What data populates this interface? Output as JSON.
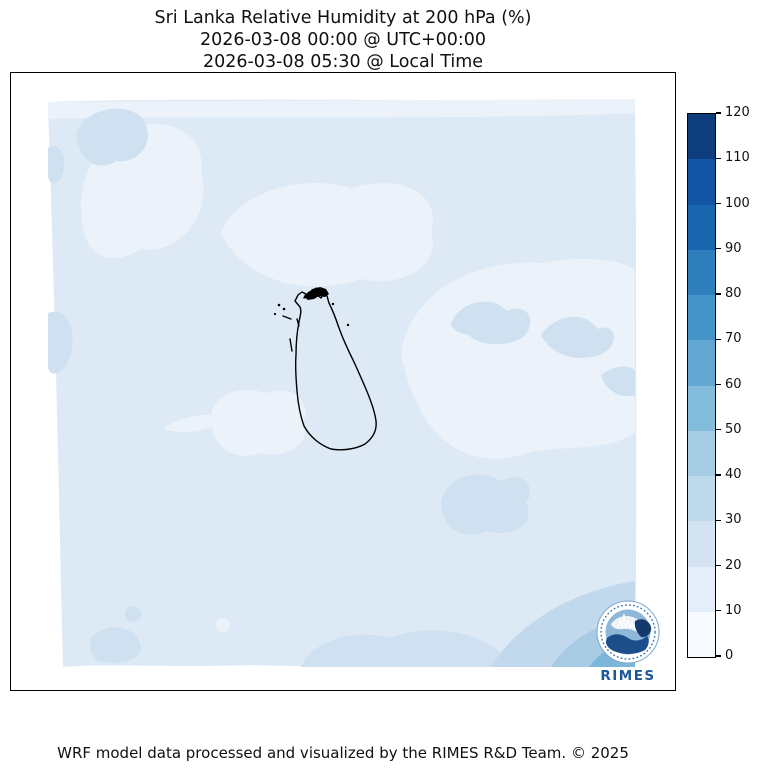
{
  "title": {
    "line1": "Sri Lanka Relative Humidity at 200 hPa (%)",
    "line2": "2026-03-08 00:00 @ UTC+00:00",
    "line3": "2026-03-08 05:30 @ Local Time"
  },
  "footer": {
    "credit": "WRF model data processed and visualized by the RIMES R&D Team. © 2025"
  },
  "colorbar": {
    "min": 0,
    "max": 120,
    "tick_step": 10,
    "ticks": [
      120,
      110,
      100,
      90,
      80,
      70,
      60,
      50,
      40,
      30,
      20,
      10,
      0
    ],
    "segments_top_to_bottom": [
      "#0d3d7c",
      "#1155a4",
      "#1a66ae",
      "#2f7fbc",
      "#4594c7",
      "#62a8d2",
      "#84bcdb",
      "#a5cde4",
      "#bed8ec",
      "#d3e3f1",
      "#e4eef9",
      "#f7fbff"
    ]
  },
  "map": {
    "region": "Sri Lanka",
    "coastline_color": "#000000",
    "colors": {
      "base": "#dde9f5",
      "light": "#ebf2fa",
      "shade20": "#cfe0f0",
      "band30": "#c2d8ec",
      "band40": "#a6cbe3",
      "band50": "#7cb7d9"
    }
  },
  "logo": {
    "label": "RIMES",
    "text_color": "#1d5796",
    "navy": "#1c4e8c",
    "dark": "#14396b",
    "mid": "#8fb8d8",
    "ring": "#3c78b4"
  },
  "chart_data": {
    "type": "heatmap",
    "title": "Sri Lanka Relative Humidity at 200 hPa (%)",
    "units": "%",
    "colorbar_range": [
      0,
      120
    ],
    "colorbar_ticks": [
      0,
      10,
      20,
      30,
      40,
      50,
      60,
      70,
      80,
      90,
      100,
      110,
      120
    ],
    "colormap": "Blues",
    "visible_field_range": [
      0,
      60
    ],
    "notes_visible": "Mostly 0-30% over domain; 30-60% bands in bottom-right corner"
  }
}
